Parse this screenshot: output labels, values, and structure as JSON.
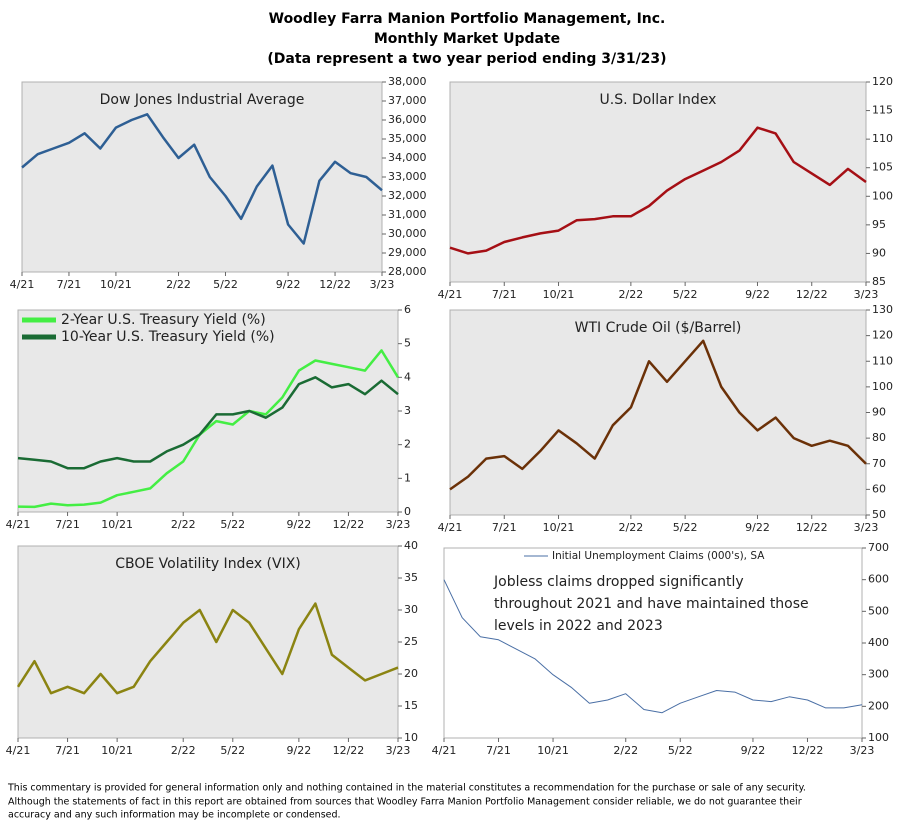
{
  "header": {
    "title": [
      "Woodley Farra Manion Portfolio Management, Inc.",
      "Monthly Market Update",
      "(Data represent a two year period ending 3/31/23)"
    ]
  },
  "footer": [
    "This commentary is provided for general information only and nothing contained in the material constitutes a recommendation for the purchase or sale of any security.",
    "Although the statements of fact in this report are obtained from sources that Woodley Farra Manion Portfolio Management consider reliable, we do not guarantee their",
    "accuracy and any such information may be incomplete or condensed."
  ],
  "chart_data": [
    {
      "type": "line",
      "title": "Dow Jones Industrial Average",
      "x": [
        0,
        1,
        2,
        3,
        4,
        5,
        6,
        7,
        8,
        9,
        10,
        11,
        12,
        13,
        14,
        15,
        16,
        17,
        18,
        19,
        20,
        21,
        22,
        23
      ],
      "values": [
        33500,
        34200,
        34500,
        34800,
        35300,
        34500,
        35600,
        36000,
        36300,
        35100,
        34000,
        34700,
        33000,
        32000,
        30800,
        32500,
        33600,
        30500,
        29500,
        32800,
        33800,
        33200,
        33000,
        32300
      ],
      "color": "#2e5f94",
      "xlim": [
        0,
        23
      ],
      "ylim": [
        28000,
        38000
      ],
      "xticks": [
        {
          "value": 0,
          "label": "4/21"
        },
        {
          "value": 3,
          "label": "7/21"
        },
        {
          "value": 6,
          "label": "10/21"
        },
        {
          "value": 10,
          "label": "2/22"
        },
        {
          "value": 13,
          "label": "5/22"
        },
        {
          "value": 17,
          "label": "9/22"
        },
        {
          "value": 20,
          "label": "12/22"
        },
        {
          "value": 23,
          "label": "3/23"
        }
      ],
      "yticks": [
        {
          "value": 28000,
          "label": "28,000"
        },
        {
          "value": 29000,
          "label": "29,000"
        },
        {
          "value": 30000,
          "label": "30,000"
        },
        {
          "value": 31000,
          "label": "31,000"
        },
        {
          "value": 32000,
          "label": "32,000"
        },
        {
          "value": 33000,
          "label": "33,000"
        },
        {
          "value": 34000,
          "label": "34,000"
        },
        {
          "value": 35000,
          "label": "35,000"
        },
        {
          "value": 36000,
          "label": "36,000"
        },
        {
          "value": 37000,
          "label": "37,000"
        },
        {
          "value": 38000,
          "label": "38,000"
        }
      ]
    },
    {
      "type": "line",
      "title": "U.S. Dollar Index",
      "x": [
        0,
        1,
        2,
        3,
        4,
        5,
        6,
        7,
        8,
        9,
        10,
        11,
        12,
        13,
        14,
        15,
        16,
        17,
        18,
        19,
        20,
        21,
        22,
        23
      ],
      "values": [
        91,
        90,
        90.5,
        92,
        92.8,
        93.5,
        94,
        95.8,
        96,
        96.5,
        96.5,
        98.3,
        101,
        103,
        104.5,
        106,
        108,
        112,
        111,
        106,
        104,
        102,
        104.8,
        102.5
      ],
      "color": "#a50f15",
      "xlim": [
        0,
        23
      ],
      "ylim": [
        85,
        120
      ],
      "xticks": [
        {
          "value": 0,
          "label": "4/21"
        },
        {
          "value": 3,
          "label": "7/21"
        },
        {
          "value": 6,
          "label": "10/21"
        },
        {
          "value": 10,
          "label": "2/22"
        },
        {
          "value": 13,
          "label": "5/22"
        },
        {
          "value": 17,
          "label": "9/22"
        },
        {
          "value": 20,
          "label": "12/22"
        },
        {
          "value": 23,
          "label": "3/23"
        }
      ],
      "yticks": [
        85,
        90,
        95,
        100,
        105,
        110,
        115,
        120
      ]
    },
    {
      "type": "line",
      "x": [
        0,
        1,
        2,
        3,
        4,
        5,
        6,
        7,
        8,
        9,
        10,
        11,
        12,
        13,
        14,
        15,
        16,
        17,
        18,
        19,
        20,
        21,
        22,
        23
      ],
      "series": [
        {
          "name": "2-Year U.S. Treasury Yield (%)",
          "color": "#44ee44",
          "values": [
            0.16,
            0.15,
            0.25,
            0.2,
            0.22,
            0.28,
            0.5,
            0.6,
            0.7,
            1.15,
            1.5,
            2.3,
            2.7,
            2.6,
            3.0,
            2.9,
            3.4,
            4.2,
            4.5,
            4.4,
            4.3,
            4.2,
            4.8,
            4.0
          ]
        },
        {
          "name": "10-Year U.S. Treasury Yield (%)",
          "color": "#1a6b34",
          "values": [
            1.6,
            1.55,
            1.5,
            1.3,
            1.3,
            1.5,
            1.6,
            1.5,
            1.5,
            1.8,
            2.0,
            2.3,
            2.9,
            2.9,
            3.0,
            2.8,
            3.1,
            3.8,
            4.0,
            3.7,
            3.8,
            3.5,
            3.9,
            3.5
          ]
        }
      ],
      "legend": "upper left",
      "xlim": [
        0,
        23
      ],
      "ylim": [
        0,
        6
      ],
      "xticks": [
        {
          "value": 0,
          "label": "4/21"
        },
        {
          "value": 3,
          "label": "7/21"
        },
        {
          "value": 6,
          "label": "10/21"
        },
        {
          "value": 10,
          "label": "2/22"
        },
        {
          "value": 13,
          "label": "5/22"
        },
        {
          "value": 17,
          "label": "9/22"
        },
        {
          "value": 20,
          "label": "12/22"
        },
        {
          "value": 23,
          "label": "3/23"
        }
      ],
      "yticks": [
        0,
        1,
        2,
        3,
        4,
        5,
        6
      ]
    },
    {
      "type": "line",
      "title": "WTI Crude Oil ($/Barrel)",
      "x": [
        0,
        1,
        2,
        3,
        4,
        5,
        6,
        7,
        8,
        9,
        10,
        11,
        12,
        13,
        14,
        15,
        16,
        17,
        18,
        19,
        20,
        21,
        22,
        23
      ],
      "values": [
        60,
        65,
        72,
        73,
        68,
        75,
        83,
        78,
        72,
        85,
        92,
        110,
        102,
        110,
        118,
        100,
        90,
        83,
        88,
        80,
        77,
        79,
        77,
        70
      ],
      "color": "#6b3108",
      "xlim": [
        0,
        23
      ],
      "ylim": [
        50,
        130
      ],
      "xticks": [
        {
          "value": 0,
          "label": "4/21"
        },
        {
          "value": 3,
          "label": "7/21"
        },
        {
          "value": 6,
          "label": "10/21"
        },
        {
          "value": 10,
          "label": "2/22"
        },
        {
          "value": 13,
          "label": "5/22"
        },
        {
          "value": 17,
          "label": "9/22"
        },
        {
          "value": 20,
          "label": "12/22"
        },
        {
          "value": 23,
          "label": "3/23"
        }
      ],
      "yticks": [
        50,
        60,
        70,
        80,
        90,
        100,
        110,
        120,
        130
      ]
    },
    {
      "type": "line",
      "title": "CBOE Volatility Index (VIX)",
      "x": [
        0,
        1,
        2,
        3,
        4,
        5,
        6,
        7,
        8,
        9,
        10,
        11,
        12,
        13,
        14,
        15,
        16,
        17,
        18,
        19,
        20,
        21,
        22,
        23
      ],
      "values": [
        18,
        22,
        17,
        18,
        17,
        20,
        17,
        18,
        22,
        25,
        28,
        30,
        25,
        30,
        28,
        24,
        20,
        27,
        31,
        23,
        21,
        19,
        20,
        21
      ],
      "color": "#8b8412",
      "xlim": [
        0,
        23
      ],
      "ylim": [
        10,
        40
      ],
      "xticks": [
        {
          "value": 0,
          "label": "4/21"
        },
        {
          "value": 3,
          "label": "7/21"
        },
        {
          "value": 6,
          "label": "10/21"
        },
        {
          "value": 10,
          "label": "2/22"
        },
        {
          "value": 13,
          "label": "5/22"
        },
        {
          "value": 17,
          "label": "9/22"
        },
        {
          "value": 20,
          "label": "12/22"
        },
        {
          "value": 23,
          "label": "3/23"
        }
      ],
      "yticks": [
        10,
        15,
        20,
        25,
        30,
        35,
        40
      ]
    },
    {
      "type": "line",
      "x": [
        0,
        1,
        2,
        3,
        4,
        5,
        6,
        7,
        8,
        9,
        10,
        11,
        12,
        13,
        14,
        15,
        16,
        17,
        18,
        19,
        20,
        21,
        22,
        23
      ],
      "series": [
        {
          "name": "Initial Unemployment Claims (000's), SA",
          "color": "#4a6fa5",
          "values": [
            600,
            480,
            420,
            410,
            380,
            350,
            300,
            260,
            210,
            220,
            240,
            190,
            180,
            210,
            230,
            250,
            245,
            220,
            215,
            230,
            220,
            195,
            195,
            205
          ]
        }
      ],
      "legend": "upper center",
      "annotation": [
        "Jobless claims dropped significantly",
        "throughout 2021 and have maintained those",
        "levels in 2022 and 2023"
      ],
      "xlim": [
        0,
        23
      ],
      "ylim": [
        100,
        700
      ],
      "xticks": [
        {
          "value": 0,
          "label": "4/21"
        },
        {
          "value": 3,
          "label": "7/21"
        },
        {
          "value": 6,
          "label": "10/21"
        },
        {
          "value": 10,
          "label": "2/22"
        },
        {
          "value": 13,
          "label": "5/22"
        },
        {
          "value": 17,
          "label": "9/22"
        },
        {
          "value": 20,
          "label": "12/22"
        },
        {
          "value": 23,
          "label": "3/23"
        }
      ],
      "yticks": [
        100,
        200,
        300,
        400,
        500,
        600,
        700
      ]
    }
  ]
}
